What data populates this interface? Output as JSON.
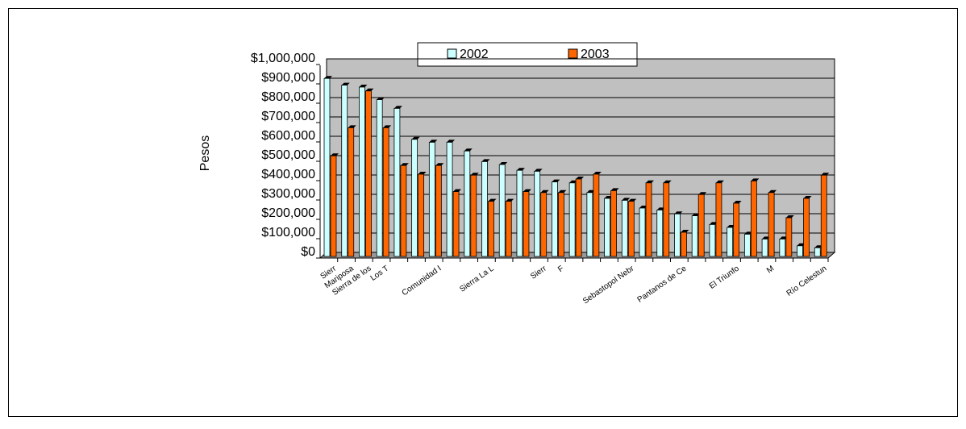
{
  "chart_data": {
    "type": "bar",
    "y_label": "Pesos",
    "categories": [
      "Sierr",
      "Mariposa",
      "Sierra de los",
      "Los T",
      null,
      null,
      "Comunidad I",
      null,
      null,
      "Sierra La L",
      null,
      null,
      "Sierr",
      "F",
      null,
      null,
      null,
      "Sebastopol Nebr",
      null,
      null,
      "Pantanos de Ce",
      null,
      null,
      "El Triunfo",
      null,
      "M",
      null,
      null,
      "Río Celestun"
    ],
    "series": [
      {
        "name": "2002",
        "color": "#ccffff",
        "values": [
          920000,
          885000,
          875000,
          810000,
          765000,
          605000,
          590000,
          590000,
          545000,
          490000,
          475000,
          445000,
          440000,
          385000,
          380000,
          330000,
          300000,
          290000,
          250000,
          240000,
          220000,
          210000,
          165000,
          150000,
          115000,
          90000,
          90000,
          55000,
          45000
        ]
      },
      {
        "name": "2003",
        "color": "#ff6600",
        "values": [
          520000,
          665000,
          855000,
          665000,
          470000,
          425000,
          470000,
          335000,
          420000,
          285000,
          285000,
          335000,
          330000,
          330000,
          400000,
          425000,
          340000,
          285000,
          380000,
          380000,
          125000,
          320000,
          380000,
          275000,
          390000,
          330000,
          200000,
          300000,
          420000
        ]
      }
    ],
    "ylim": [
      0,
      1000000
    ],
    "yticks": [
      {
        "value": 0,
        "label": "$0"
      },
      {
        "value": 100000,
        "label": "$100,000"
      },
      {
        "value": 200000,
        "label": "$200,000"
      },
      {
        "value": 300000,
        "label": "$300,000"
      },
      {
        "value": 400000,
        "label": "$400,000"
      },
      {
        "value": 500000,
        "label": "$500,000"
      },
      {
        "value": 600000,
        "label": "$600,000"
      },
      {
        "value": 700000,
        "label": "$700,000"
      },
      {
        "value": 800000,
        "label": "$800,000"
      },
      {
        "value": 900000,
        "label": "$900,000"
      },
      {
        "value": 1000000,
        "label": "$1,000,000"
      }
    ],
    "grid": true
  }
}
